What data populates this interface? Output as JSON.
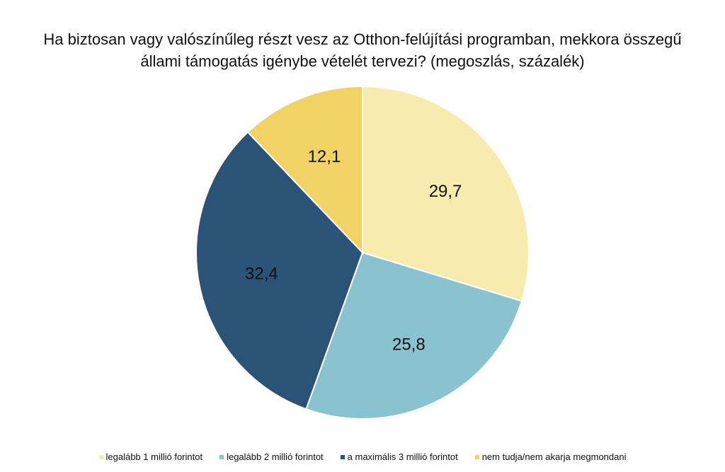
{
  "chart_data": {
    "type": "pie",
    "title_lines": [
      "Ha biztosan vagy valószínűleg részt vesz az Otthon-felújítási programban, mekkora összegű",
      "állami támogatás igénybe vételét tervezi? (megoszlás, százalék)"
    ],
    "slices": [
      {
        "label": "legalább 1 millió forintot",
        "value": 29.7,
        "value_label": "29,7",
        "color": "#F8EBAE"
      },
      {
        "label": "legalább 2 millió forintot",
        "value": 25.8,
        "value_label": "25,8",
        "color": "#8AC3D0"
      },
      {
        "label": "a maximális 3 millió forintot",
        "value": 32.4,
        "value_label": "32,4",
        "color": "#2B5277"
      },
      {
        "label": "nem tudja/nem akarja megmondani",
        "value": 12.1,
        "value_label": "12,1",
        "color": "#F2D264"
      }
    ],
    "start_angle": "12 o'clock",
    "direction": "clockwise",
    "legend_position": "bottom"
  }
}
